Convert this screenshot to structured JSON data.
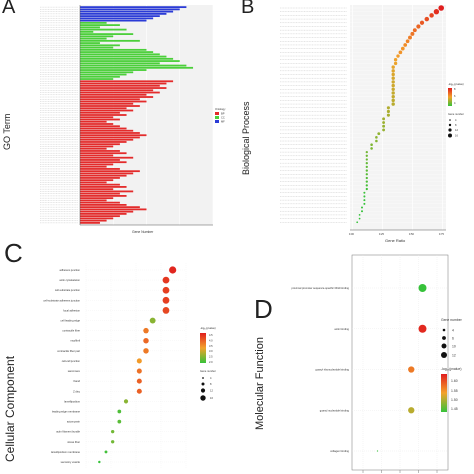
{
  "panels": {
    "a": "A",
    "b": "B",
    "c": "C",
    "d": "D"
  },
  "chart_data": [
    {
      "panel": "A",
      "type": "bar",
      "orientation": "horizontal",
      "ylabel": "GO Term",
      "xlabel": "Gene Number",
      "legend": {
        "title": "Ontology",
        "entries": [
          "BP",
          "CC",
          "MF"
        ],
        "colors": [
          "#e32b2b",
          "#4bcf3a",
          "#2b3bd6"
        ],
        "placement": "right"
      },
      "xlim": [
        0,
        20
      ],
      "series": [
        {
          "name": "MF",
          "color": "#2b3bd6",
          "values": [
            16,
            15,
            14,
            13,
            12,
            11,
            10
          ]
        },
        {
          "name": "CC",
          "color": "#4bcf3a",
          "values": [
            4,
            6,
            3,
            7,
            2,
            8,
            5,
            4,
            9,
            3,
            6,
            5,
            10,
            11,
            12,
            13,
            14,
            15,
            12,
            16,
            17,
            10,
            8,
            7,
            6,
            5
          ]
        },
        {
          "name": "BP",
          "color": "#e32b2b",
          "values": [
            14,
            13,
            12,
            13,
            11,
            12,
            10,
            11,
            9,
            10,
            8,
            9,
            7,
            8,
            6,
            7,
            5,
            6,
            4,
            5,
            6,
            7,
            8,
            9,
            10,
            9,
            8,
            7,
            6,
            5,
            4,
            6,
            7,
            5,
            8,
            6,
            7,
            5,
            4,
            6,
            9,
            8,
            7,
            6,
            5,
            4,
            6,
            7,
            5,
            8,
            6,
            7,
            5,
            4,
            6,
            7,
            9,
            10,
            8,
            7,
            6,
            5,
            4,
            3
          ]
        }
      ]
    },
    {
      "panel": "B",
      "type": "scatter",
      "ylabel": "Biological Process",
      "xlabel": "Gene Ratio",
      "xticks": [
        "0.00",
        "0.25",
        "0.50",
        "0.75"
      ],
      "xlim": [
        -0.02,
        0.78
      ],
      "legend_color": {
        "title": "-log₁₀(pvalue)",
        "ticks": [
          "8",
          "6",
          "4"
        ]
      },
      "legend_size": {
        "title": "Gene number",
        "ticks": [
          "4",
          "8",
          "12",
          "16"
        ]
      },
      "points": [
        {
          "x": 0.74,
          "s": 16,
          "c": 8
        },
        {
          "x": 0.7,
          "s": 15,
          "c": 7.6
        },
        {
          "x": 0.66,
          "s": 12,
          "c": 7
        },
        {
          "x": 0.62,
          "s": 12,
          "c": 6.8
        },
        {
          "x": 0.58,
          "s": 11,
          "c": 6.5
        },
        {
          "x": 0.55,
          "s": 11,
          "c": 6.2
        },
        {
          "x": 0.52,
          "s": 10,
          "c": 6
        },
        {
          "x": 0.5,
          "s": 10,
          "c": 5.8
        },
        {
          "x": 0.48,
          "s": 10,
          "c": 5.6
        },
        {
          "x": 0.46,
          "s": 9,
          "c": 5.4
        },
        {
          "x": 0.44,
          "s": 9,
          "c": 5.2
        },
        {
          "x": 0.42,
          "s": 9,
          "c": 5
        },
        {
          "x": 0.4,
          "s": 9,
          "c": 5
        },
        {
          "x": 0.38,
          "s": 8,
          "c": 4.8
        },
        {
          "x": 0.36,
          "s": 8,
          "c": 4.6
        },
        {
          "x": 0.36,
          "s": 8,
          "c": 4.5
        },
        {
          "x": 0.34,
          "s": 8,
          "c": 4.4
        },
        {
          "x": 0.34,
          "s": 8,
          "c": 4.3
        },
        {
          "x": 0.34,
          "s": 8,
          "c": 4.2
        },
        {
          "x": 0.34,
          "s": 8,
          "c": 4.1
        },
        {
          "x": 0.34,
          "s": 8,
          "c": 4
        },
        {
          "x": 0.34,
          "s": 8,
          "c": 4
        },
        {
          "x": 0.34,
          "s": 8,
          "c": 3.9
        },
        {
          "x": 0.34,
          "s": 8,
          "c": 3.8
        },
        {
          "x": 0.34,
          "s": 8,
          "c": 3.8
        },
        {
          "x": 0.34,
          "s": 8,
          "c": 3.7
        },
        {
          "x": 0.34,
          "s": 8,
          "c": 3.6
        },
        {
          "x": 0.3,
          "s": 7,
          "c": 3.5
        },
        {
          "x": 0.3,
          "s": 7,
          "c": 3.4
        },
        {
          "x": 0.3,
          "s": 7,
          "c": 3.3
        },
        {
          "x": 0.26,
          "s": 6,
          "c": 3.2
        },
        {
          "x": 0.26,
          "s": 6,
          "c": 3.1
        },
        {
          "x": 0.26,
          "s": 6,
          "c": 3
        },
        {
          "x": 0.26,
          "s": 6,
          "c": 3
        },
        {
          "x": 0.22,
          "s": 6,
          "c": 2.9
        },
        {
          "x": 0.2,
          "s": 5,
          "c": 2.8
        },
        {
          "x": 0.2,
          "s": 5,
          "c": 2.7
        },
        {
          "x": 0.16,
          "s": 5,
          "c": 2.6
        },
        {
          "x": 0.16,
          "s": 5,
          "c": 2.5
        },
        {
          "x": 0.12,
          "s": 4,
          "c": 2.4
        },
        {
          "x": 0.12,
          "s": 4,
          "c": 2.3
        },
        {
          "x": 0.12,
          "s": 4,
          "c": 2.2
        },
        {
          "x": 0.12,
          "s": 4,
          "c": 2.1
        },
        {
          "x": 0.12,
          "s": 4,
          "c": 2
        },
        {
          "x": 0.12,
          "s": 4,
          "c": 2
        },
        {
          "x": 0.12,
          "s": 4,
          "c": 1.9
        },
        {
          "x": 0.12,
          "s": 4,
          "c": 1.8
        },
        {
          "x": 0.12,
          "s": 4,
          "c": 1.7
        },
        {
          "x": 0.12,
          "s": 4,
          "c": 1.6
        },
        {
          "x": 0.12,
          "s": 4,
          "c": 1.5
        },
        {
          "x": 0.1,
          "s": 3,
          "c": 1.4
        },
        {
          "x": 0.1,
          "s": 3,
          "c": 1.3
        },
        {
          "x": 0.1,
          "s": 3,
          "c": 1.3
        },
        {
          "x": 0.1,
          "s": 3,
          "c": 1.3
        },
        {
          "x": 0.08,
          "s": 3,
          "c": 1.3
        },
        {
          "x": 0.08,
          "s": 3,
          "c": 1.3
        },
        {
          "x": 0.06,
          "s": 2,
          "c": 1.3
        },
        {
          "x": 0.06,
          "s": 2,
          "c": 1.3
        },
        {
          "x": 0.04,
          "s": 2,
          "c": 1.3
        }
      ]
    },
    {
      "panel": "C",
      "type": "scatter",
      "ylabel": "Cellular Component",
      "categories": [
        "adherens junction",
        "actin cytoskeleton",
        "cell-substrate junction",
        "cell-substrate adherens junction",
        "focal adhesion",
        "cell leading edge",
        "contractile fiber",
        "myofibril",
        "contractile fiber part",
        "cell-cell junction",
        "sarcomere",
        "I band",
        "Z disc",
        "lamellipodium",
        "leading edge membrane",
        "actomyosin",
        "actin filament bundle",
        "stress fiber",
        "lamellipodium membrane",
        "secretory vesicle"
      ],
      "x": [
        16,
        15,
        15,
        15,
        15,
        13,
        12,
        12,
        12,
        11,
        11,
        11,
        11,
        9,
        8,
        8,
        7,
        7,
        6,
        5
      ],
      "color_value": [
        4.6,
        4.4,
        4.3,
        4.3,
        4.2,
        2.2,
        3.6,
        3.8,
        3.6,
        3.2,
        3.7,
        3.9,
        3.9,
        2.2,
        1.7,
        1.8,
        2.0,
        2.0,
        1.6,
        1.5
      ],
      "legend_color": {
        "title": "-log₁₀(pvalue)",
        "ticks": [
          "4.5",
          "4.0",
          "3.5",
          "3.0",
          "2.5",
          "2.0"
        ]
      },
      "legend_size": {
        "title": "Gene number",
        "ticks": [
          "4",
          "8",
          "12",
          "16"
        ]
      }
    },
    {
      "panel": "D",
      "type": "scatter",
      "ylabel": "Molecular Function",
      "categories": [
        "proximal promoter sequence-specific DNA binding",
        "actin binding",
        "guanyl ribonucleotide binding",
        "guanyl nucleotide binding",
        "collagen binding"
      ],
      "x": [
        12,
        12,
        10,
        10,
        4
      ],
      "color_value": [
        1.4,
        1.62,
        1.55,
        1.48,
        1.4
      ],
      "legend_size": {
        "title": "Gene number",
        "ticks": [
          "4",
          "6",
          "10",
          "12"
        ]
      },
      "legend_color": {
        "title": "-log₁₀(pvalue)",
        "ticks": [
          "1.60",
          "1.55",
          "1.50",
          "1.45"
        ]
      }
    }
  ]
}
